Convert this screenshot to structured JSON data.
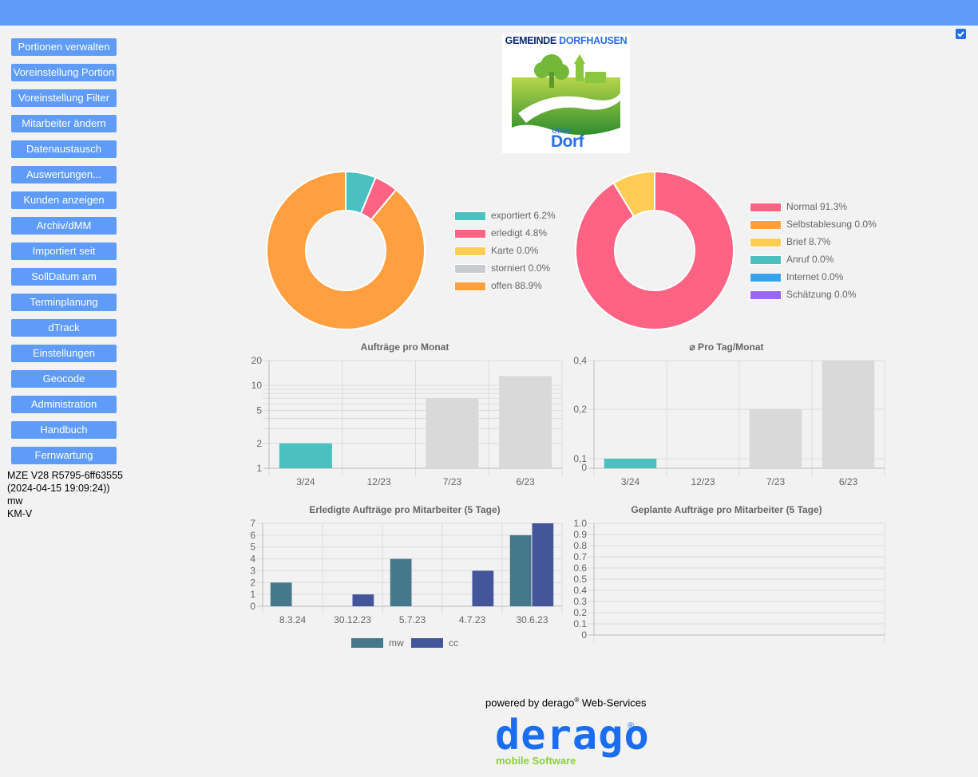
{
  "nav": [
    "Portionen verwalten",
    "Voreinstellung Portion",
    "Voreinstellung Filter",
    "Mitarbeiter ändern",
    "Datenaustausch",
    "Auswertungen...",
    "Kunden anzeigen",
    "Archiv/dMM",
    "Importiert seit",
    "SollDatum am",
    "Terminplanung",
    "dTrack",
    "Einstellungen",
    "Geocode",
    "Administration",
    "Handbuch",
    "Fernwartung"
  ],
  "version": {
    "line1": "MZE V28 R5795-6ff63555",
    "line2": "(2024-04-15 19:09:24))",
    "line3": "mw",
    "line4": "KM-V"
  },
  "logo": {
    "title_part1": "GEMEINDE",
    "title_part2": "DORFHAUSEN",
    "small": "Unser",
    "big": "Dorf"
  },
  "colors": {
    "accent": "#5f9cf9",
    "teal": "#4bc0c0",
    "pink": "#ff6384",
    "yellow": "#ffcd56",
    "grey": "#c9cbcf",
    "orange": "#ff9f40",
    "blue": "#36a2eb",
    "purple": "#9966ff",
    "bar_grey": "#d9d9d9",
    "mw": "#44788a",
    "cc": "#435699"
  },
  "chart_data": [
    {
      "type": "pie",
      "labels": [
        "exportiert 6.2%",
        "erledigt 4.8%",
        "Karte 0.0%",
        "storniert 0.0%",
        "offen 88.9%"
      ],
      "values": [
        6.2,
        4.8,
        0.0,
        0.0,
        88.9
      ],
      "colors": [
        "#4bc0c0",
        "#ff6384",
        "#ffcd56",
        "#c9cbcf",
        "#ff9f40"
      ]
    },
    {
      "type": "pie",
      "labels": [
        "Normal 91.3%",
        "Selbstablesung 0.0%",
        "Brief 8.7%",
        "Anruf 0.0%",
        "Internet 0.0%",
        "Schätzung 0.0%"
      ],
      "values": [
        91.3,
        0.0,
        8.7,
        0.0,
        0.0,
        0.0
      ],
      "colors": [
        "#ff6384",
        "#ff9f40",
        "#ffcd56",
        "#4bc0c0",
        "#36a2eb",
        "#9966ff"
      ]
    },
    {
      "type": "bar",
      "title": "Aufträge pro Monat",
      "categories": [
        "3/24",
        "12/23",
        "7/23",
        "6/23"
      ],
      "values": [
        2,
        0,
        7,
        13
      ],
      "bar_colors": [
        "#4bc0c0",
        "#d9d9d9",
        "#d9d9d9",
        "#d9d9d9"
      ],
      "yscale": "log",
      "ylim": [
        1,
        20
      ],
      "yticks": [
        "20",
        "10",
        "5",
        "2",
        "1"
      ]
    },
    {
      "type": "bar",
      "title": "⌀ Pro Tag/Monat",
      "categories": [
        "3/24",
        "12/23",
        "7/23",
        "6/23"
      ],
      "values": [
        0.1,
        0,
        0.2,
        0.4
      ],
      "bar_colors": [
        "#4bc0c0",
        "#d9d9d9",
        "#d9d9d9",
        "#d9d9d9"
      ],
      "yticks": [
        "0,4",
        "0,2",
        "0,1",
        "0"
      ]
    },
    {
      "type": "bar",
      "title": "Erledigte Aufträge pro Mitarbeiter (5 Tage)",
      "categories": [
        "8.3.24",
        "30.12.23",
        "5.7.23",
        "4.7.23",
        "30.6.23"
      ],
      "series": [
        {
          "name": "mw",
          "values": [
            2,
            0,
            4,
            0,
            6
          ],
          "color": "#44788a"
        },
        {
          "name": "cc",
          "values": [
            0,
            1,
            0,
            3,
            7
          ],
          "color": "#435699"
        }
      ],
      "ylim": [
        0,
        7
      ],
      "yticks": [
        "7",
        "6",
        "5",
        "4",
        "3",
        "2",
        "1",
        "0"
      ],
      "legend": "bottom"
    },
    {
      "type": "bar",
      "title": "Geplante Aufträge pro Mitarbeiter (5 Tage)",
      "categories": [],
      "values": [],
      "ylim": [
        0,
        1
      ],
      "yticks": [
        "1.0",
        "0.9",
        "0.8",
        "0.7",
        "0.6",
        "0.5",
        "0.4",
        "0.3",
        "0.2",
        "0.1",
        "0"
      ]
    }
  ],
  "footer": {
    "powered_pre": "powered by derago",
    "powered_reg": "®",
    "powered_post": " Web-Services",
    "derago_word": "derago",
    "derago_reg": "®",
    "derago_sub": "mobile Software"
  }
}
